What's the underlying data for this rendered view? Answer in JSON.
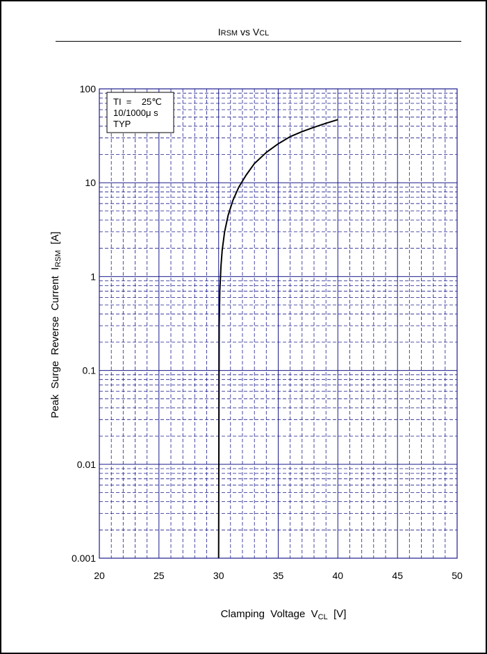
{
  "chart_data": {
    "type": "line",
    "title_main_a": "I",
    "title_sub_a": "RSM",
    "title_mid": " vs ",
    "title_main_b": "V",
    "title_sub_b": "CL",
    "xlabel_main": "Clamping  Voltage  V",
    "xlabel_sub": "CL",
    "xlabel_unit": "  [V]",
    "ylabel_main": "Peak  Surge  Reverse  Current  I",
    "ylabel_sub": "RSM",
    "ylabel_unit": "  [A]",
    "xlim": [
      20,
      50
    ],
    "ylim": [
      0.001,
      100
    ],
    "yscale": "log",
    "grid": true,
    "x_ticks": [
      "20",
      "25",
      "30",
      "35",
      "40",
      "45",
      "50"
    ],
    "y_ticks": [
      "0.001",
      "0.01",
      "0.1",
      "1",
      "10",
      "100"
    ],
    "legend_lines": [
      "TI  =    25℃",
      "10/1000μ s",
      "TYP"
    ],
    "legend_position": "top-left",
    "grid_color": "#1a1a8c",
    "line_color": "#000000",
    "series": [
      {
        "x": [
          30.0,
          30.05,
          30.1,
          30.2,
          30.3,
          30.5,
          30.8,
          31.2,
          31.7,
          32.3,
          33.0,
          34.0,
          35.0,
          36.0,
          37.0,
          38.0,
          39.0,
          40.0
        ],
        "y": [
          0.001,
          0.3,
          0.7,
          1.3,
          1.9,
          3.0,
          4.5,
          6.5,
          9.0,
          12.0,
          16.0,
          21.0,
          26.0,
          31.0,
          35.0,
          39.0,
          43.0,
          47.0
        ]
      }
    ]
  }
}
